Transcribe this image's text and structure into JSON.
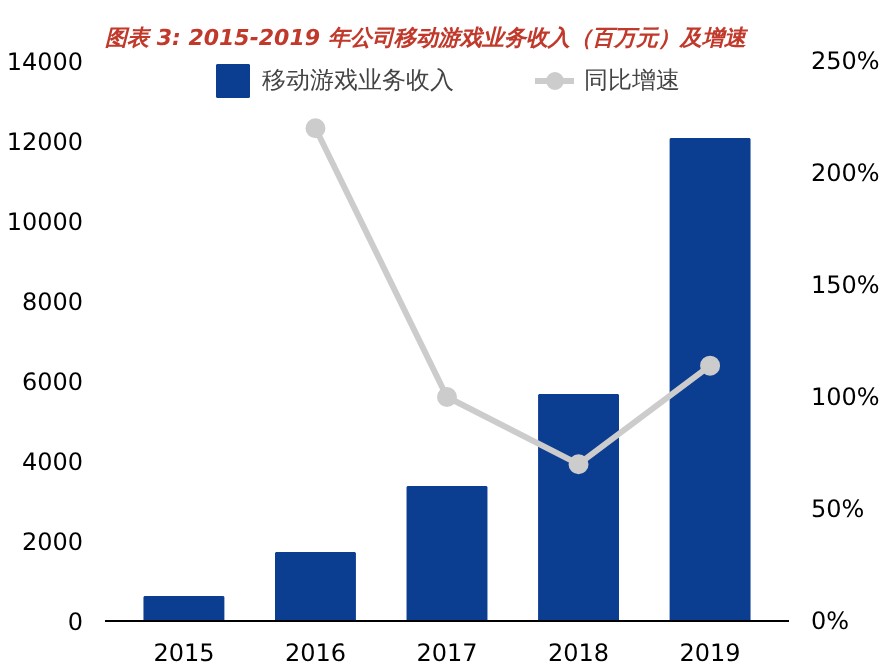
{
  "chart_data": {
    "type": "bar",
    "title": "图表 3:  2015-2019 年公司移动游戏业务收入（百万元）及增速",
    "categories": [
      "2015",
      "2016",
      "2017",
      "2018",
      "2019"
    ],
    "series": [
      {
        "name": "移动游戏业务收入",
        "color": "#0b3d91",
        "values": [
          600,
          1700,
          3350,
          5650,
          12050
        ]
      },
      {
        "name": "同比增速",
        "type": "line",
        "axis": "y2",
        "color": "#cccccc",
        "marker": "circle",
        "values": [
          null,
          220,
          100,
          70,
          114
        ]
      }
    ],
    "ylim": [
      0,
      14000
    ],
    "yticks": [
      0,
      2000,
      4000,
      6000,
      8000,
      10000,
      12000,
      14000
    ],
    "y2lim": [
      0,
      250
    ],
    "y2ticks": [
      {
        "value": 0,
        "label": "0%"
      },
      {
        "value": 50,
        "label": "50%"
      },
      {
        "value": 100,
        "label": "100%"
      },
      {
        "value": 150,
        "label": "150%"
      },
      {
        "value": 200,
        "label": "200%"
      },
      {
        "value": 250,
        "label": "250%"
      }
    ],
    "legend": "top",
    "grid": false
  }
}
